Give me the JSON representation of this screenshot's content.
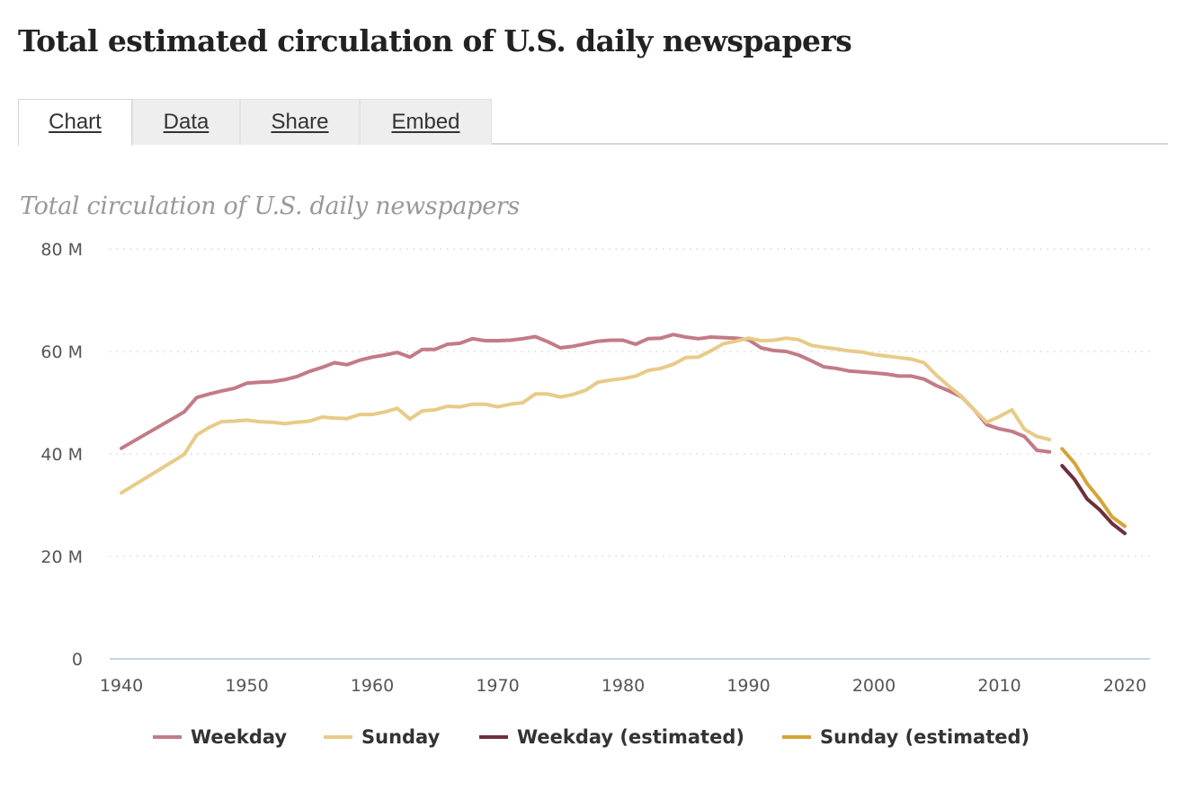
{
  "page": {
    "title": "Total estimated circulation of U.S. daily newspapers"
  },
  "tabs": [
    {
      "label": "Chart",
      "active": true
    },
    {
      "label": "Data",
      "active": false
    },
    {
      "label": "Share",
      "active": false
    },
    {
      "label": "Embed",
      "active": false
    }
  ],
  "chart_data": {
    "type": "line",
    "title": "Total circulation of U.S. daily newspapers",
    "xlabel": "",
    "ylabel": "",
    "xlim": [
      1940,
      2021
    ],
    "ylim": [
      0,
      80
    ],
    "grid": true,
    "legend_position": "bottom",
    "x_ticks": [
      1940,
      1950,
      1960,
      1970,
      1980,
      1990,
      2000,
      2010,
      2020
    ],
    "x_tick_labels": [
      "1940",
      "1950",
      "1960",
      "1970",
      "1980",
      "1990",
      "2000",
      "2010",
      "2020"
    ],
    "y_ticks": [
      0,
      20,
      40,
      60,
      80
    ],
    "y_tick_labels": [
      "0",
      "20 M",
      "40 M",
      "60 M",
      "80 M"
    ],
    "units": "millions",
    "series": [
      {
        "name": "Weekday",
        "color": "#c27b87",
        "x": [
          1940,
          1945,
          1946,
          1947,
          1948,
          1949,
          1950,
          1951,
          1952,
          1953,
          1954,
          1955,
          1956,
          1957,
          1958,
          1959,
          1960,
          1961,
          1962,
          1963,
          1964,
          1965,
          1966,
          1967,
          1968,
          1969,
          1970,
          1971,
          1972,
          1973,
          1974,
          1975,
          1976,
          1977,
          1978,
          1979,
          1980,
          1981,
          1982,
          1983,
          1984,
          1985,
          1986,
          1987,
          1988,
          1989,
          1990,
          1991,
          1992,
          1993,
          1994,
          1995,
          1996,
          1997,
          1998,
          1999,
          2000,
          2001,
          2002,
          2003,
          2004,
          2005,
          2006,
          2007,
          2008,
          2009,
          2010,
          2011,
          2012,
          2013,
          2014
        ],
        "values": [
          41.1,
          48.2,
          51.0,
          51.7,
          52.3,
          52.8,
          53.8,
          54.0,
          54.1,
          54.5,
          55.1,
          56.1,
          56.9,
          57.8,
          57.4,
          58.3,
          58.9,
          59.3,
          59.8,
          58.9,
          60.4,
          60.4,
          61.4,
          61.6,
          62.5,
          62.1,
          62.1,
          62.2,
          62.5,
          62.9,
          61.9,
          60.7,
          61.0,
          61.5,
          62.0,
          62.2,
          62.2,
          61.4,
          62.5,
          62.6,
          63.3,
          62.8,
          62.5,
          62.8,
          62.7,
          62.6,
          62.3,
          60.7,
          60.2,
          60.0,
          59.3,
          58.2,
          57.0,
          56.7,
          56.2,
          56.0,
          55.8,
          55.6,
          55.2,
          55.2,
          54.6,
          53.3,
          52.3,
          51.1,
          48.6,
          45.7,
          44.9,
          44.4,
          43.4,
          40.7,
          40.4
        ]
      },
      {
        "name": "Sunday",
        "color": "#e8cb88",
        "x": [
          1940,
          1945,
          1946,
          1947,
          1948,
          1949,
          1950,
          1951,
          1952,
          1953,
          1954,
          1955,
          1956,
          1957,
          1958,
          1959,
          1960,
          1961,
          1962,
          1963,
          1964,
          1965,
          1966,
          1967,
          1968,
          1969,
          1970,
          1971,
          1972,
          1973,
          1974,
          1975,
          1976,
          1977,
          1978,
          1979,
          1980,
          1981,
          1982,
          1983,
          1984,
          1985,
          1986,
          1987,
          1988,
          1989,
          1990,
          1991,
          1992,
          1993,
          1994,
          1995,
          1996,
          1997,
          1998,
          1999,
          2000,
          2001,
          2002,
          2003,
          2004,
          2005,
          2006,
          2007,
          2008,
          2009,
          2010,
          2011,
          2012,
          2013,
          2014
        ],
        "values": [
          32.4,
          39.9,
          43.7,
          45.2,
          46.3,
          46.4,
          46.6,
          46.3,
          46.2,
          45.9,
          46.2,
          46.4,
          47.2,
          47.0,
          46.9,
          47.7,
          47.7,
          48.2,
          48.9,
          46.8,
          48.4,
          48.6,
          49.3,
          49.2,
          49.7,
          49.7,
          49.2,
          49.7,
          50.0,
          51.7,
          51.7,
          51.1,
          51.6,
          52.4,
          54.0,
          54.4,
          54.7,
          55.2,
          56.3,
          56.7,
          57.5,
          58.8,
          58.9,
          60.1,
          61.5,
          62.0,
          62.6,
          62.1,
          62.2,
          62.6,
          62.3,
          61.2,
          60.8,
          60.5,
          60.1,
          59.9,
          59.4,
          59.1,
          58.8,
          58.5,
          57.8,
          55.3,
          53.2,
          51.2,
          48.6,
          46.2,
          47.3,
          48.6,
          44.8,
          43.4,
          42.8
        ]
      },
      {
        "name": "Weekday (estimated)",
        "color": "#6e2f3c",
        "x": [
          2015,
          2016,
          2017,
          2018,
          2019,
          2020
        ],
        "values": [
          37.7,
          35.0,
          31.2,
          29.1,
          26.4,
          24.5
        ]
      },
      {
        "name": "Sunday (estimated)",
        "color": "#d4a537",
        "x": [
          2015,
          2016,
          2017,
          2018,
          2019,
          2020
        ],
        "values": [
          41.0,
          38.2,
          34.2,
          31.2,
          27.7,
          25.9
        ]
      }
    ]
  }
}
